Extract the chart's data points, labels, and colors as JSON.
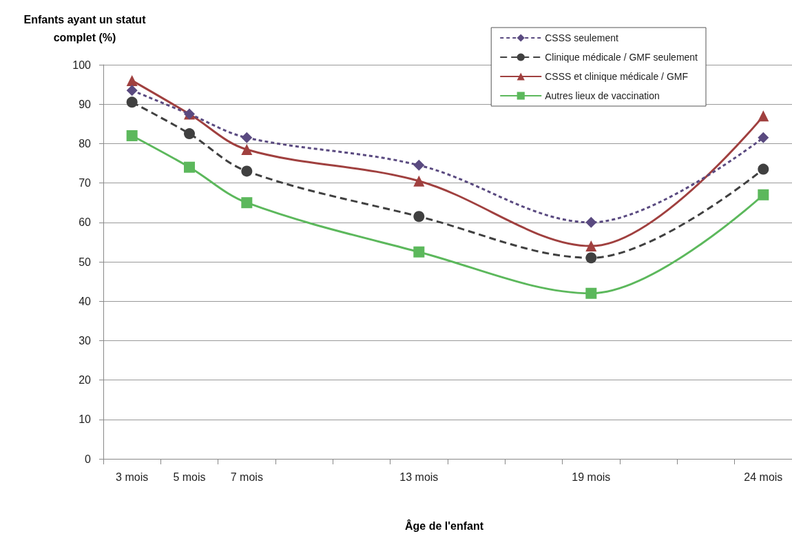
{
  "chart_data": {
    "type": "line",
    "xlabel": "Âge de l'enfant",
    "ylabel": "Enfants ayant un statut\ncomplet (%)",
    "categories": [
      "3 mois",
      "5 mois",
      "7 mois",
      null,
      null,
      "13 mois",
      null,
      null,
      "19 mois",
      null,
      null,
      "24 mois"
    ],
    "ylim": [
      0,
      100
    ],
    "yticks": [
      0,
      10,
      20,
      30,
      40,
      50,
      60,
      70,
      80,
      90,
      100
    ],
    "grid": "y",
    "legend": "top right",
    "series": [
      {
        "name": "CSSS seulement",
        "color": "#5a4a80",
        "marker": "diamond",
        "line_style": "dotted",
        "values": [
          93.5,
          87.5,
          81.5,
          null,
          null,
          74.5,
          null,
          null,
          60,
          null,
          null,
          81.5
        ]
      },
      {
        "name": "Clinique médicale / GMF seulement",
        "color": "#404040",
        "marker": "circle",
        "line_style": "dashed",
        "values": [
          90.5,
          82.5,
          73,
          null,
          null,
          61.5,
          null,
          null,
          51,
          null,
          null,
          73.5
        ]
      },
      {
        "name": "CSSS et clinique médicale / GMF",
        "color": "#a0403f",
        "marker": "triangle",
        "line_style": "solid",
        "values": [
          96,
          87.5,
          78.5,
          null,
          null,
          70.5,
          null,
          null,
          54,
          null,
          null,
          87
        ]
      },
      {
        "name": "Autres lieux de vaccination",
        "color": "#5cb85c",
        "marker": "square",
        "line_style": "solid",
        "values": [
          82,
          74,
          65,
          null,
          null,
          52.5,
          null,
          null,
          42,
          null,
          null,
          67
        ]
      }
    ]
  }
}
